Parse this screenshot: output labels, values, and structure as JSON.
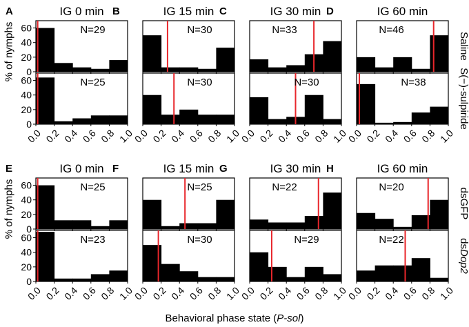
{
  "figure": {
    "xlabel_main": "Behavioral phase state (",
    "xlabel_italic": "P-sol",
    "xlabel_close": ")",
    "ylabel": "% of nymphs",
    "x_tick_labels": [
      "0.0",
      "0.2",
      "0.4",
      "0.6",
      "0.8",
      "1.0"
    ],
    "y_tick_labels": [
      "0",
      "20",
      "40",
      "60"
    ]
  },
  "rows": [
    {
      "label": "Saline",
      "label_italic": "",
      "panel_row": 0
    },
    {
      "label": "S(−)-sulpiride",
      "label_italic": "",
      "panel_row": 0
    },
    {
      "label": "dsGFP",
      "label_italic": "",
      "panel_row": 1
    },
    {
      "label": "ds",
      "label_italic": "Dop2",
      "panel_row": 1
    }
  ],
  "panel_letters": [
    "A",
    "B",
    "C",
    "D",
    "E",
    "F",
    "G",
    "H"
  ],
  "panel_titles": [
    "IG 0 min",
    "IG 15 min",
    "IG 30 min",
    "IG 60 min",
    "IG 0 min",
    "IG 15 min",
    "IG 30 min",
    "IG 60 min"
  ],
  "colors": {
    "bar": "#000000",
    "mean_line": "#e8262b"
  },
  "chart_data": {
    "type": "bar",
    "description_fields": "Histograms of % of nymphs per behavioral phase state bin (P-sol, 5 bins of width 0.2); red line = mean P-sol",
    "bins": [
      "0.0-0.2",
      "0.2-0.4",
      "0.4-0.6",
      "0.6-0.8",
      "0.8-1.0"
    ],
    "xlim": [
      0,
      1
    ],
    "ylim": [
      0,
      70
    ],
    "y_ticks": [
      0,
      20,
      40,
      60
    ],
    "grid": false,
    "panels": [
      {
        "row": 0,
        "col": 0,
        "n_label": "N=29",
        "values": [
          60,
          12,
          6,
          4,
          16
        ],
        "mean": 0.02
      },
      {
        "row": 0,
        "col": 1,
        "n_label": "N=30",
        "values": [
          50,
          6,
          6,
          4,
          33
        ],
        "mean": 0.27
      },
      {
        "row": 0,
        "col": 2,
        "n_label": "N=33",
        "values": [
          17,
          6,
          9,
          24,
          42
        ],
        "mean": 0.7
      },
      {
        "row": 0,
        "col": 3,
        "n_label": "N=46",
        "values": [
          20,
          6,
          20,
          4,
          50
        ],
        "mean": 0.84
      },
      {
        "row": 1,
        "col": 0,
        "n_label": "N=25",
        "values": [
          64,
          4,
          8,
          12,
          12
        ],
        "mean": 0.02
      },
      {
        "row": 1,
        "col": 1,
        "n_label": "N=30",
        "values": [
          40,
          13,
          20,
          13,
          13
        ],
        "mean": 0.34
      },
      {
        "row": 1,
        "col": 2,
        "n_label": "N=30",
        "values": [
          37,
          7,
          10,
          40,
          7
        ],
        "mean": 0.5
      },
      {
        "row": 1,
        "col": 3,
        "n_label": "N=38",
        "values": [
          55,
          2,
          3,
          16,
          24
        ],
        "mean": 0.03
      },
      {
        "row": 2,
        "col": 0,
        "n_label": "N=25",
        "values": [
          60,
          12,
          12,
          4,
          12
        ],
        "mean": 0.02
      },
      {
        "row": 2,
        "col": 1,
        "n_label": "N=25",
        "values": [
          40,
          4,
          8,
          8,
          40
        ],
        "mean": 0.46
      },
      {
        "row": 2,
        "col": 2,
        "n_label": "N=22",
        "values": [
          13,
          9,
          9,
          18,
          50
        ],
        "mean": 0.75
      },
      {
        "row": 2,
        "col": 3,
        "n_label": "N=20",
        "values": [
          22,
          14,
          3,
          19,
          40
        ],
        "mean": 0.78
      },
      {
        "row": 3,
        "col": 0,
        "n_label": "N=23",
        "values": [
          68,
          4,
          4,
          10,
          15
        ],
        "mean": 0.02
      },
      {
        "row": 3,
        "col": 1,
        "n_label": "N=30",
        "values": [
          50,
          24,
          14,
          6,
          6
        ],
        "mean": 0.17
      },
      {
        "row": 3,
        "col": 2,
        "n_label": "N=29",
        "values": [
          40,
          20,
          6,
          20,
          10
        ],
        "mean": 0.24
      },
      {
        "row": 3,
        "col": 3,
        "n_label": "N=22",
        "values": [
          15,
          22,
          22,
          32,
          5
        ],
        "mean": 0.53
      }
    ]
  }
}
